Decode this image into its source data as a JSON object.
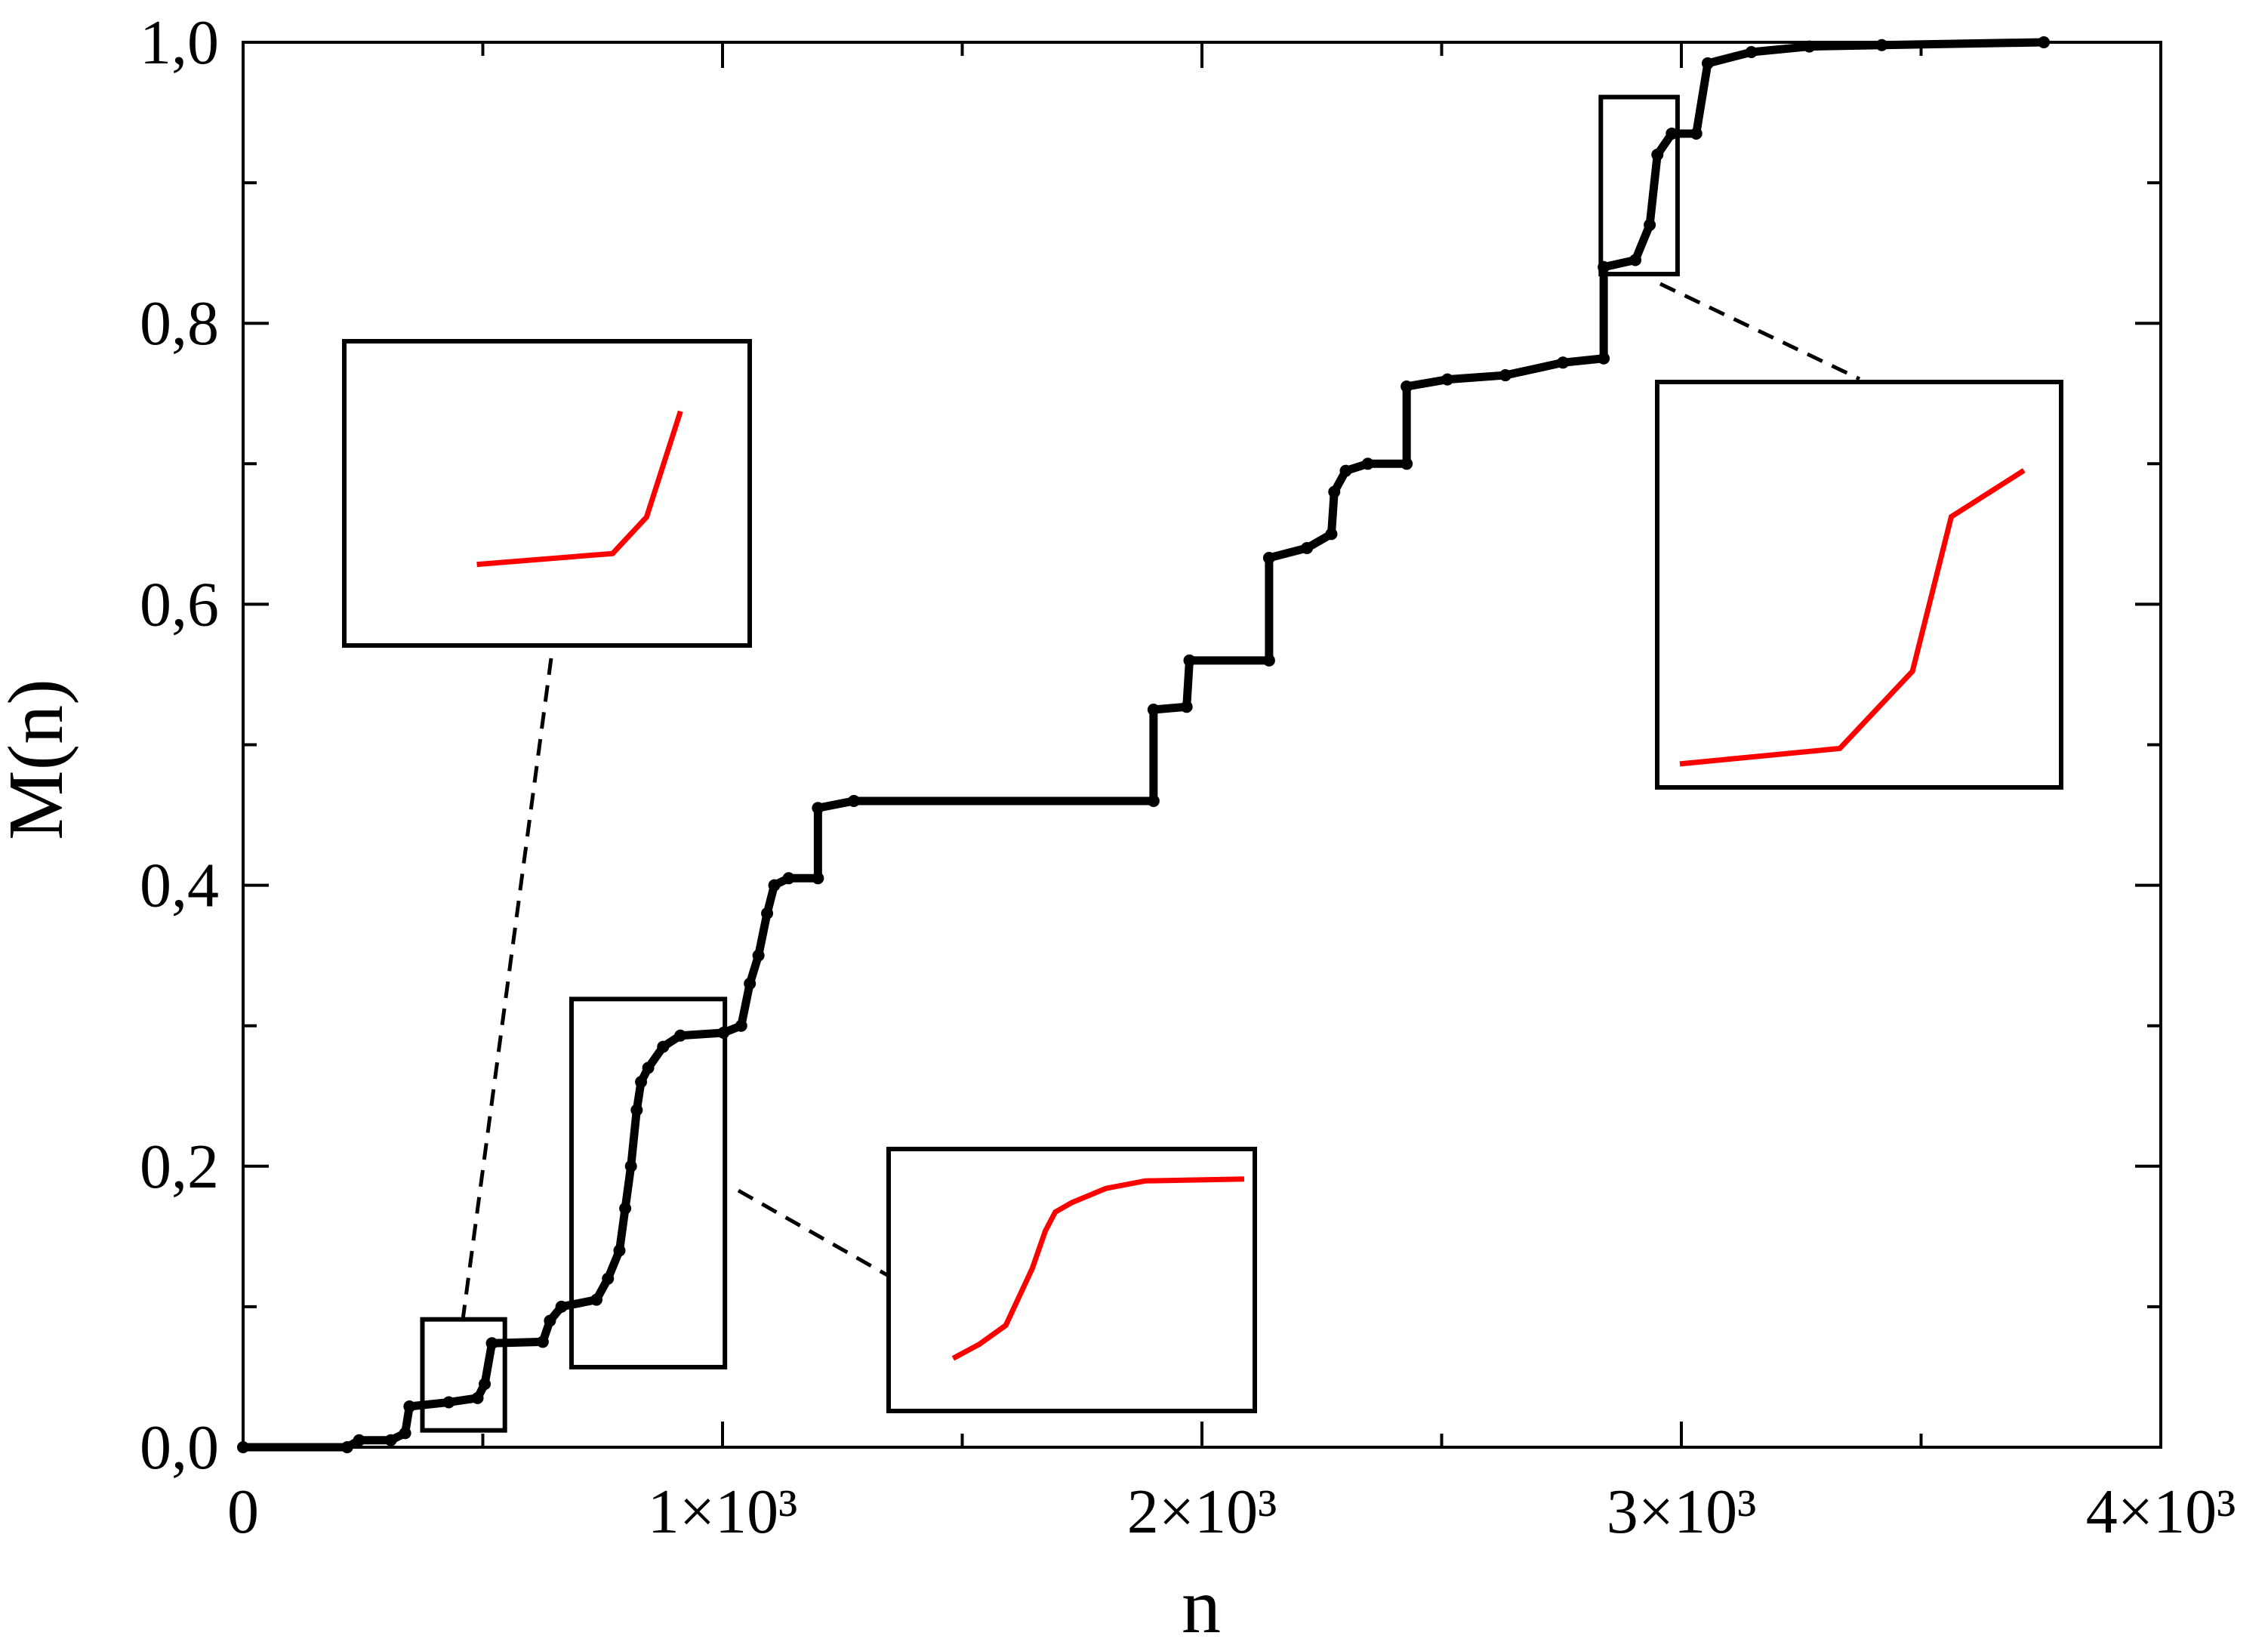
{
  "chart_data": {
    "type": "line",
    "xlabel": "n",
    "ylabel": "M(n)",
    "x": [
      0,
      217,
      242,
      308,
      338,
      347,
      429,
      489,
      504,
      519,
      625,
      640,
      664,
      737,
      761,
      785,
      797,
      809,
      821,
      830,
      845,
      876,
      912,
      1002,
      1039,
      1057,
      1075,
      1093,
      1108,
      1138,
      1199,
      1199,
      1274,
      1899,
      1899,
      1968,
      1974,
      2140,
      2140,
      2219,
      2270,
      2276,
      2300,
      2346,
      2427,
      2427,
      2512,
      2633,
      2753,
      2838,
      2838,
      2904,
      2934,
      2950,
      2980,
      3031,
      3055,
      3146,
      3267,
      3418,
      3756
    ],
    "series": [
      {
        "color": "#000000",
        "values": [
          0,
          0,
          0.005,
          0.005,
          0.01,
          0.029,
          0.032,
          0.035,
          0.045,
          0.074,
          0.075,
          0.09,
          0.1,
          0.105,
          0.12,
          0.14,
          0.17,
          0.2,
          0.24,
          0.26,
          0.27,
          0.285,
          0.293,
          0.295,
          0.3,
          0.33,
          0.35,
          0.38,
          0.4,
          0.405,
          0.405,
          0.455,
          0.46,
          0.46,
          0.525,
          0.527,
          0.56,
          0.56,
          0.633,
          0.64,
          0.65,
          0.68,
          0.695,
          0.7,
          0.7,
          0.755,
          0.76,
          0.763,
          0.772,
          0.775,
          0.84,
          0.845,
          0.87,
          0.92,
          0.935,
          0.935,
          0.985,
          0.993,
          0.997,
          0.998,
          1.0
        ]
      }
    ],
    "xlim": [
      0,
      4000
    ],
    "ylim": [
      0,
      1
    ],
    "xticks": [
      0,
      {
        "value": 1000,
        "label": "1×10³"
      },
      {
        "value": 2000,
        "label": "2×10³"
      },
      {
        "value": 3000,
        "label": "3×10³"
      },
      {
        "value": 4000,
        "label": "4×10³"
      }
    ],
    "xminorticks": [
      500,
      1500,
      2500,
      3500
    ],
    "yticks": [
      {
        "value": 0,
        "label": "0,0"
      },
      {
        "value": 0.2,
        "label": "0,2"
      },
      {
        "value": 0.4,
        "label": "0,4"
      },
      {
        "value": 0.6,
        "label": "0,6"
      },
      {
        "value": 0.8,
        "label": "0,8"
      },
      {
        "value": 1,
        "label": "1,0"
      }
    ],
    "yminorticks": [
      0.1,
      0.3,
      0.5,
      0.7,
      0.9
    ],
    "inset_color": "#ff0000",
    "insets": [
      {
        "xlim": [
          374,
          546
        ],
        "ylim": [
          0.012,
          0.091
        ]
      },
      {
        "xlim": [
          685,
          1005
        ],
        "ylim": [
          0.057,
          0.319
        ]
      },
      {
        "xlim": [
          2832,
          2992
        ],
        "ylim": [
          0.835,
          0.961
        ]
      }
    ]
  }
}
